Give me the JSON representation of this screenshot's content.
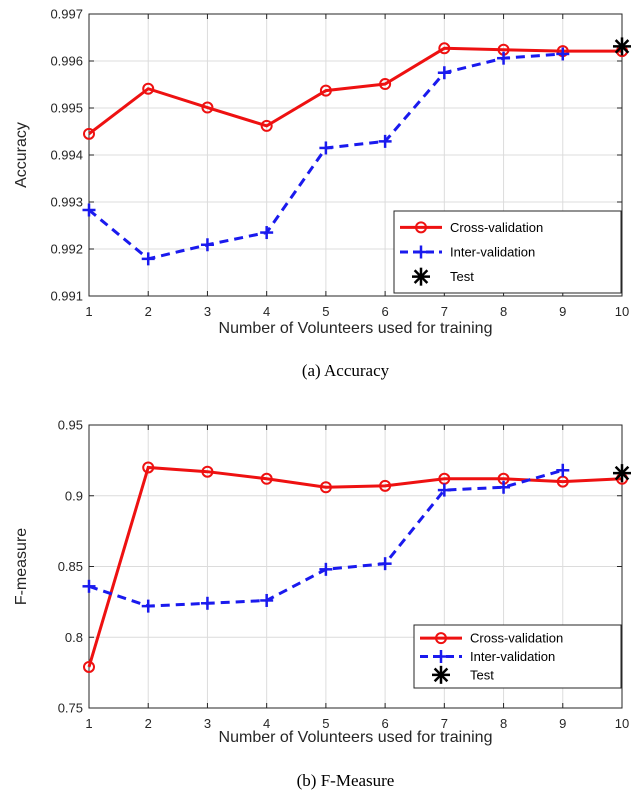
{
  "chart_data": [
    {
      "type": "line",
      "caption": "(a)  Accuracy",
      "xlabel": "Number of Volunteers used for training",
      "ylabel": "Accuracy",
      "xlim": [
        1,
        10
      ],
      "ylim": [
        0.991,
        0.997
      ],
      "xticks": [
        1,
        2,
        3,
        4,
        5,
        6,
        7,
        8,
        9,
        10
      ],
      "yticks": [
        0.991,
        0.992,
        0.993,
        0.994,
        0.995,
        0.996,
        0.997
      ],
      "ytick_labels": [
        "0.991",
        "0.992",
        "0.993",
        "0.994",
        "0.995",
        "0.996",
        "0.997"
      ],
      "grid": true,
      "legend_position": "bottom-right",
      "series": [
        {
          "name": "Cross-validation",
          "color": "#ee1111",
          "marker": "circle",
          "line": "solid",
          "x": [
            1,
            2,
            3,
            4,
            5,
            6,
            7,
            8,
            9,
            10
          ],
          "values": [
            0.99445,
            0.99541,
            0.99501,
            0.99462,
            0.99537,
            0.99551,
            0.99627,
            0.99624,
            0.99621,
            0.99621
          ]
        },
        {
          "name": "Inter-validation",
          "color": "#1a1aee",
          "marker": "plus",
          "line": "dashed",
          "x": [
            1,
            2,
            3,
            4,
            5,
            6,
            7,
            8,
            9
          ],
          "values": [
            0.99283,
            0.99179,
            0.99209,
            0.99235,
            0.99415,
            0.99429,
            0.99575,
            0.99606,
            0.99615
          ]
        },
        {
          "name": "Test",
          "color": "#000000",
          "marker": "asterisk",
          "line": "none",
          "x": [
            10
          ],
          "values": [
            0.99631
          ]
        }
      ]
    },
    {
      "type": "line",
      "caption": "(b)  F-Measure",
      "xlabel": "Number of Volunteers used for training",
      "ylabel": "F-measure",
      "xlim": [
        1,
        10
      ],
      "ylim": [
        0.75,
        0.95
      ],
      "xticks": [
        1,
        2,
        3,
        4,
        5,
        6,
        7,
        8,
        9,
        10
      ],
      "yticks": [
        0.75,
        0.8,
        0.85,
        0.9,
        0.95
      ],
      "ytick_labels": [
        "0.75",
        "0.8",
        "0.85",
        "0.9",
        "0.95"
      ],
      "grid": true,
      "legend_position": "bottom-right",
      "series": [
        {
          "name": "Cross-validation",
          "color": "#ee1111",
          "marker": "circle",
          "line": "solid",
          "x": [
            1,
            2,
            3,
            4,
            5,
            6,
            7,
            8,
            9,
            10
          ],
          "values": [
            0.779,
            0.92,
            0.917,
            0.912,
            0.906,
            0.907,
            0.912,
            0.912,
            0.91,
            0.912
          ]
        },
        {
          "name": "Inter-validation",
          "color": "#1a1aee",
          "marker": "plus",
          "line": "dashed",
          "x": [
            1,
            2,
            3,
            4,
            5,
            6,
            7,
            8,
            9
          ],
          "values": [
            0.836,
            0.822,
            0.824,
            0.826,
            0.848,
            0.852,
            0.904,
            0.906,
            0.918
          ]
        },
        {
          "name": "Test",
          "color": "#000000",
          "marker": "asterisk",
          "line": "none",
          "x": [
            10
          ],
          "values": [
            0.916
          ]
        }
      ]
    }
  ]
}
